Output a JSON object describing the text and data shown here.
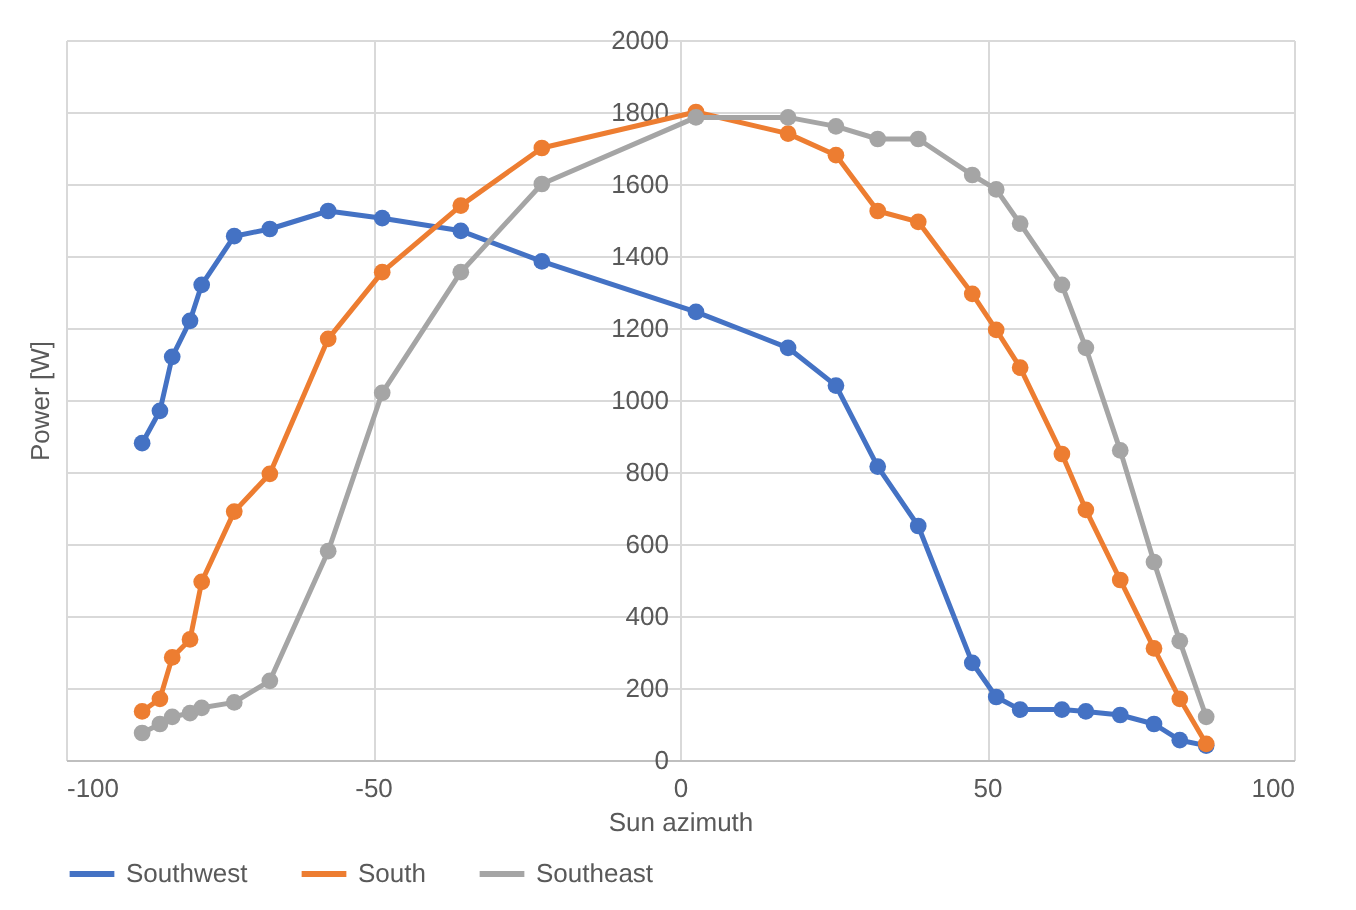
{
  "chart_data": {
    "type": "line",
    "xlabel": "Sun azimuth",
    "ylabel": "Power [W]",
    "x": [
      -87.6,
      -84.7,
      -82.7,
      -79.8,
      -77.9,
      -72.6,
      -66.8,
      -57.3,
      -48.5,
      -35.7,
      -22.5,
      2.6,
      17.6,
      25.4,
      32.2,
      38.8,
      47.6,
      51.5,
      55.4,
      62.2,
      66.1,
      71.7,
      77.2,
      81.4,
      85.7
    ],
    "series": [
      {
        "name": "Southwest",
        "color": "#4472c4",
        "values": [
          880,
          970,
          1120,
          1220,
          1320,
          1455,
          1475,
          1525,
          1505,
          1470,
          1385,
          1245,
          1145,
          1040,
          815,
          650,
          270,
          175,
          140,
          140,
          135,
          125,
          100,
          55,
          40
        ]
      },
      {
        "name": "South",
        "color": "#ed7d31",
        "values": [
          135,
          170,
          285,
          335,
          495,
          690,
          795,
          1170,
          1355,
          1540,
          1700,
          1800,
          1740,
          1680,
          1525,
          1495,
          1295,
          1195,
          1090,
          850,
          695,
          500,
          310,
          170,
          45
        ]
      },
      {
        "name": "Southeast",
        "color": "#a5a5a5",
        "values": [
          75,
          100,
          120,
          130,
          145,
          160,
          220,
          580,
          1020,
          1355,
          1600,
          1785,
          1785,
          1760,
          1725,
          1725,
          1625,
          1585,
          1490,
          1320,
          1145,
          860,
          550,
          330,
          120
        ]
      }
    ],
    "xlim": [
      -100,
      100
    ],
    "xticks": [
      -100,
      -50,
      0,
      50,
      100
    ],
    "ylim": [
      0,
      2000
    ],
    "yticks": [
      0,
      200,
      400,
      600,
      800,
      1000,
      1200,
      1400,
      1600,
      1800,
      2000
    ],
    "grid": true,
    "legend": "bottom",
    "marker": "circle",
    "line_style": "solid"
  }
}
